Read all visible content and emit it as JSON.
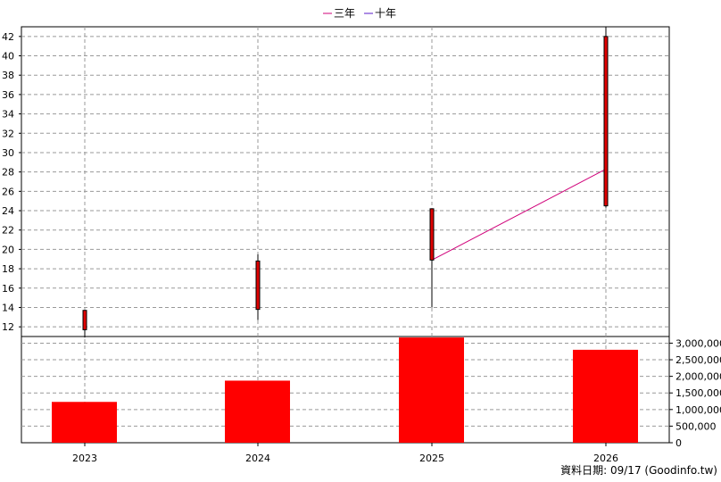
{
  "chart_data": {
    "type": "candlestick+bar",
    "x_categories": [
      "2023",
      "2024",
      "2025",
      "2026"
    ],
    "price_axis": {
      "ylim": [
        11,
        43
      ],
      "ticks": [
        12,
        14,
        16,
        18,
        20,
        22,
        24,
        26,
        28,
        30,
        32,
        34,
        36,
        38,
        40,
        42
      ]
    },
    "volume_axis": {
      "ylim": [
        0,
        3200000
      ],
      "ticks": [
        0,
        500000,
        1000000,
        1500000,
        2000000,
        2500000,
        3000000
      ],
      "tick_labels": [
        "0",
        "500,000",
        "1,000,000",
        "1,500,000",
        "2,000,000",
        "2,500,000",
        "3,000,000"
      ]
    },
    "candles": [
      {
        "x": "2023",
        "open": 11.7,
        "close": 13.7,
        "high": 13.7,
        "low": 10.9
      },
      {
        "x": "2024",
        "open": 13.8,
        "close": 18.8,
        "high": 19.5,
        "low": 12.7
      },
      {
        "x": "2025",
        "open": 18.9,
        "close": 24.2,
        "high": 24.2,
        "low": 14.0
      },
      {
        "x": "2026",
        "open": 24.5,
        "close": 42.0,
        "high": 43.0,
        "low": 24.3
      }
    ],
    "volume": [
      {
        "x": "2023",
        "value": 1230000
      },
      {
        "x": "2024",
        "value": 1870000
      },
      {
        "x": "2025",
        "value": 3170000
      },
      {
        "x": "2026",
        "value": 2800000
      }
    ],
    "series": [
      {
        "name": "三年",
        "color": "#d0007a",
        "points": [
          {
            "x": "2025",
            "y": 18.9
          },
          {
            "x": "2026",
            "y": 28.3
          }
        ]
      },
      {
        "name": "十年",
        "color": "#5a18c8",
        "points": []
      }
    ],
    "grid": true,
    "legend_position": "top-center"
  },
  "colors": {
    "candle_body": "#e00000",
    "volume_bar": "#ff0000",
    "grid": "#999999",
    "wick": "#000000"
  },
  "source_label": "資料日期: 09/17  (Goodinfo.tw)"
}
